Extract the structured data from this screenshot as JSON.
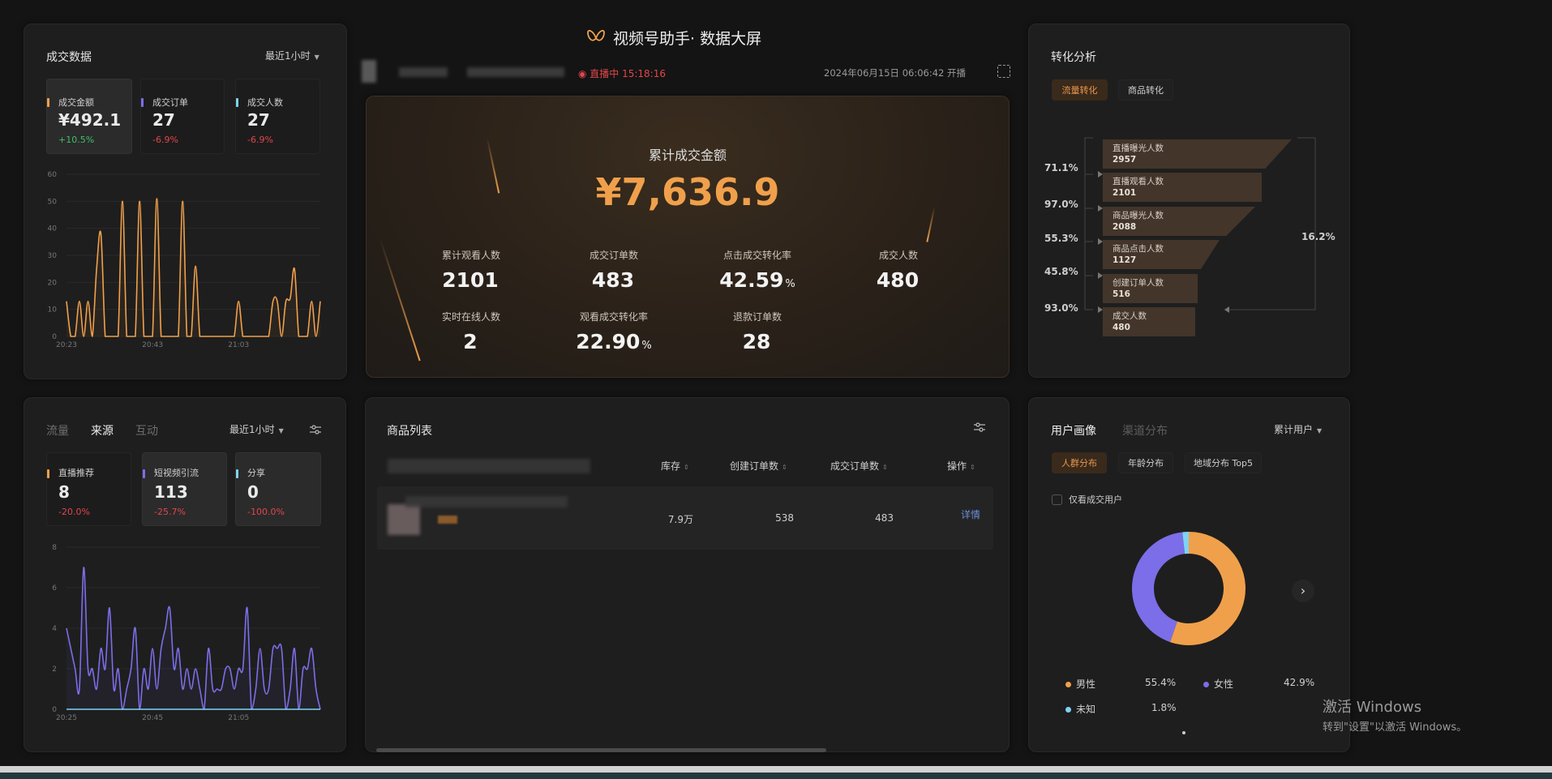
{
  "header": {
    "title": "视频号助手· 数据大屏",
    "live_status": "直播中 15:18:16",
    "start_time": "2024年06月15日 06:06:42 开播"
  },
  "colors": {
    "accent": "#f0a04b",
    "purple": "#7b6ee8",
    "cyan": "#7fd3f2",
    "up": "#3fbf6a",
    "down": "#e0464a",
    "link": "#6a8fd8"
  },
  "deal": {
    "title": "成交数据",
    "range": "最近1小时",
    "cards": [
      {
        "label": "成交金额",
        "value": "¥492.1",
        "delta": "+10.5%"
      },
      {
        "label": "成交订单",
        "value": "27",
        "delta": "-6.9%"
      },
      {
        "label": "成交人数",
        "value": "27",
        "delta": "-6.9%"
      }
    ]
  },
  "summary": {
    "title": "累计成交金额",
    "total": "¥7,636.9",
    "stats": [
      {
        "label": "累计观看人数",
        "value": "2101",
        "unit": ""
      },
      {
        "label": "成交订单数",
        "value": "483",
        "unit": ""
      },
      {
        "label": "点击成交转化率",
        "value": "42.59",
        "unit": "%"
      },
      {
        "label": "成交人数",
        "value": "480",
        "unit": ""
      },
      {
        "label": "实时在线人数",
        "value": "2",
        "unit": ""
      },
      {
        "label": "观看成交转化率",
        "value": "22.90",
        "unit": "%"
      },
      {
        "label": "退款订单数",
        "value": "28",
        "unit": ""
      }
    ]
  },
  "conversion": {
    "title": "转化分析",
    "tabs": [
      "流量转化",
      "商品转化"
    ],
    "stages": [
      {
        "label": "直播曝光人数",
        "value": "2957"
      },
      {
        "label": "直播观看人数",
        "value": "2101"
      },
      {
        "label": "商品曝光人数",
        "value": "2088"
      },
      {
        "label": "商品点击人数",
        "value": "1127"
      },
      {
        "label": "创建订单人数",
        "value": "516"
      },
      {
        "label": "成交人数",
        "value": "480"
      }
    ],
    "rates": [
      "71.1%",
      "97.0%",
      "55.3%",
      "45.8%",
      "93.0%"
    ],
    "overall": "16.2%"
  },
  "source": {
    "tabs": [
      "流量",
      "来源",
      "互动"
    ],
    "range": "最近1小时",
    "cards": [
      {
        "label": "直播推荐",
        "value": "8",
        "delta": "-20.0%"
      },
      {
        "label": "短视频引流",
        "value": "113",
        "delta": "-25.7%"
      },
      {
        "label": "分享",
        "value": "0",
        "delta": "-100.0%"
      }
    ]
  },
  "products": {
    "title": "商品列表",
    "columns": [
      "库存",
      "创建订单数",
      "成交订单数",
      "操作"
    ],
    "rows": [
      {
        "stock": "7.9万",
        "created": "538",
        "deals": "483",
        "action": "详情"
      }
    ]
  },
  "users": {
    "tabs": [
      "用户画像",
      "渠道分布"
    ],
    "range": "累计用户",
    "subtabs": [
      "人群分布",
      "年龄分布",
      "地域分布 Top5"
    ],
    "checkbox": "仅看成交用户",
    "legend": [
      {
        "label": "男性",
        "value": "55.4%"
      },
      {
        "label": "女性",
        "value": "42.9%"
      },
      {
        "label": "未知",
        "value": "1.8%"
      }
    ]
  },
  "watermark": {
    "line1": "激活 Windows",
    "line2": "转到\"设置\"以激活 Windows。"
  },
  "chart_data": [
    {
      "type": "line",
      "ylim": [
        0,
        60
      ],
      "yticks": [
        0,
        10,
        20,
        30,
        40,
        50,
        60
      ],
      "xtick_labels": [
        "20:23",
        "20:43",
        "21:03"
      ],
      "x_start": "20:23",
      "x_step_minutes": 1,
      "grid": true,
      "series": [
        {
          "color": "#f0a04b",
          "values": [
            13,
            0,
            0,
            13,
            0,
            13,
            0,
            25,
            38,
            0,
            0,
            0,
            0,
            50,
            0,
            0,
            0,
            50,
            0,
            0,
            0,
            51,
            0,
            0,
            0,
            0,
            0,
            50,
            0,
            0,
            26,
            0,
            0,
            0,
            0,
            0,
            0,
            0,
            0,
            0,
            13,
            0,
            0,
            0,
            0,
            0,
            0,
            0,
            13,
            13,
            0,
            13,
            14,
            25,
            0,
            0,
            0,
            13,
            0,
            13
          ]
        }
      ]
    },
    {
      "type": "line",
      "ylim": [
        0,
        8
      ],
      "yticks": [
        0,
        2,
        4,
        6,
        8
      ],
      "xtick_labels": [
        "20:25",
        "20:45",
        "21:05"
      ],
      "x_start": "20:25",
      "x_step_minutes": 1,
      "grid": true,
      "series": [
        {
          "color": "#7b6ee8",
          "values": [
            4,
            3,
            2,
            1,
            7,
            2,
            2,
            1,
            3,
            2,
            5,
            1,
            2,
            0,
            1,
            2,
            4,
            0,
            2,
            1,
            3,
            1,
            3,
            4,
            5,
            2,
            3,
            1,
            2,
            1,
            2,
            1,
            0,
            3,
            1,
            1,
            1,
            2,
            2,
            1,
            2,
            2,
            5,
            0,
            1,
            3,
            1,
            1,
            3,
            3,
            3,
            0,
            1,
            3,
            0,
            2,
            2,
            3,
            1,
            0
          ]
        },
        {
          "color": "#7fd3f2",
          "values": [
            0,
            0,
            0,
            0,
            0,
            0,
            0,
            0,
            0,
            0,
            0,
            0,
            0,
            0,
            0,
            0,
            0,
            0,
            0,
            0,
            0,
            0,
            0,
            0,
            0,
            0,
            0,
            0,
            0,
            0,
            0,
            0,
            0,
            0,
            0,
            0,
            0,
            0,
            0,
            0,
            0,
            0,
            0,
            0,
            0,
            0,
            0,
            0,
            0,
            0,
            0,
            0,
            0,
            0,
            0,
            0,
            0,
            0,
            0,
            0
          ]
        }
      ]
    },
    {
      "type": "pie",
      "donut": true,
      "categories": [
        "男性",
        "女性",
        "未知"
      ],
      "values": [
        55.4,
        42.9,
        1.8
      ],
      "colors": [
        "#f0a04b",
        "#7b6ee8",
        "#7fd3f2"
      ]
    }
  ]
}
